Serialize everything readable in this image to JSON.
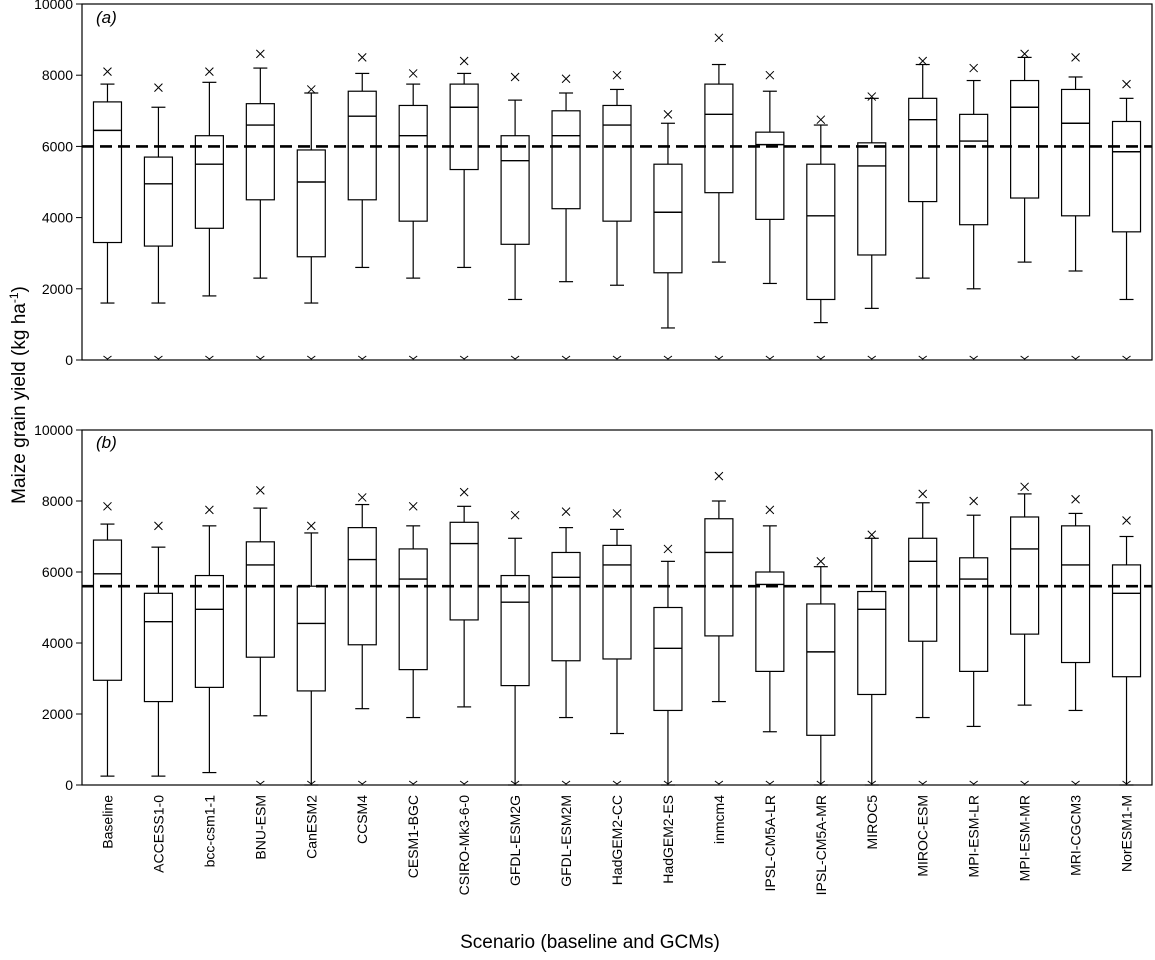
{
  "chart_data": {
    "type": "box",
    "ylabel_main": "Maize grain yield (kg ha",
    "ylabel_unit_sup": "-1",
    "ylabel_close": ")",
    "xlabel": "Scenario (baseline and GCMs)",
    "categories": [
      "Baseline",
      "ACCESS1-0",
      "bcc-csm1-1",
      "BNU-ESM",
      "CanESM2",
      "CCSM4",
      "CESM1-BGC",
      "CSIRO-Mk3-6-0",
      "GFDL-ESM2G",
      "GFDL-ESM2M",
      "HadGEM2-CC",
      "HadGEM2-ES",
      "inmcm4",
      "IPSL-CM5A-LR",
      "IPSL-CM5A-MR",
      "MIROC5",
      "MIROC-ESM",
      "MPI-ESM-LR",
      "MPI-ESM-MR",
      "MRI-CGCM3",
      "NorESM1-M"
    ],
    "ylim": [
      0,
      10000
    ],
    "yticks": [
      0,
      2000,
      4000,
      6000,
      8000,
      10000
    ],
    "panels": [
      {
        "label": "(a)",
        "reference_line": 6000,
        "boxes": [
          {
            "min": 1600,
            "q1": 3300,
            "median": 6450,
            "q3": 7250,
            "max": 7750,
            "max_marker": 8100,
            "min_marker": 0
          },
          {
            "min": 1600,
            "q1": 3200,
            "median": 4950,
            "q3": 5700,
            "max": 7100,
            "max_marker": 7650,
            "min_marker": 0
          },
          {
            "min": 1800,
            "q1": 3700,
            "median": 5500,
            "q3": 6300,
            "max": 7800,
            "max_marker": 8100,
            "min_marker": 0
          },
          {
            "min": 2300,
            "q1": 4500,
            "median": 6600,
            "q3": 7200,
            "max": 8200,
            "max_marker": 8600,
            "min_marker": 0
          },
          {
            "min": 1600,
            "q1": 2900,
            "median": 5000,
            "q3": 5900,
            "max": 7500,
            "max_marker": 7600,
            "min_marker": 0
          },
          {
            "min": 2600,
            "q1": 4500,
            "median": 6850,
            "q3": 7550,
            "max": 8050,
            "max_marker": 8500,
            "min_marker": 0
          },
          {
            "min": 2300,
            "q1": 3900,
            "median": 6300,
            "q3": 7150,
            "max": 7750,
            "max_marker": 8050,
            "min_marker": 0
          },
          {
            "min": 2600,
            "q1": 5350,
            "median": 7100,
            "q3": 7750,
            "max": 8050,
            "max_marker": 8400,
            "min_marker": 0
          },
          {
            "min": 1700,
            "q1": 3250,
            "median": 5600,
            "q3": 6300,
            "max": 7300,
            "max_marker": 7950,
            "min_marker": 0
          },
          {
            "min": 2200,
            "q1": 4250,
            "median": 6300,
            "q3": 7000,
            "max": 7500,
            "max_marker": 7900,
            "min_marker": 0
          },
          {
            "min": 2100,
            "q1": 3900,
            "median": 6600,
            "q3": 7150,
            "max": 7600,
            "max_marker": 8000,
            "min_marker": 0
          },
          {
            "min": 900,
            "q1": 2450,
            "median": 4150,
            "q3": 5500,
            "max": 6650,
            "max_marker": 6900,
            "min_marker": 0
          },
          {
            "min": 2750,
            "q1": 4700,
            "median": 6900,
            "q3": 7750,
            "max": 8300,
            "max_marker": 9050,
            "min_marker": 0
          },
          {
            "min": 2150,
            "q1": 3950,
            "median": 6050,
            "q3": 6400,
            "max": 7550,
            "max_marker": 8000,
            "min_marker": 0
          },
          {
            "min": 1050,
            "q1": 1700,
            "median": 4050,
            "q3": 5500,
            "max": 6600,
            "max_marker": 6750,
            "min_marker": 0
          },
          {
            "min": 1450,
            "q1": 2950,
            "median": 5450,
            "q3": 6100,
            "max": 7350,
            "max_marker": 7400,
            "min_marker": 0
          },
          {
            "min": 2300,
            "q1": 4450,
            "median": 6750,
            "q3": 7350,
            "max": 8300,
            "max_marker": 8400,
            "min_marker": 0
          },
          {
            "min": 2000,
            "q1": 3800,
            "median": 6150,
            "q3": 6900,
            "max": 7850,
            "max_marker": 8200,
            "min_marker": 0
          },
          {
            "min": 2750,
            "q1": 4550,
            "median": 7100,
            "q3": 7850,
            "max": 8500,
            "max_marker": 8600,
            "min_marker": 0
          },
          {
            "min": 2500,
            "q1": 4050,
            "median": 6650,
            "q3": 7600,
            "max": 7950,
            "max_marker": 8500,
            "min_marker": 0
          },
          {
            "min": 1700,
            "q1": 3600,
            "median": 5850,
            "q3": 6700,
            "max": 7350,
            "max_marker": 7750,
            "min_marker": 0
          }
        ]
      },
      {
        "label": "(b)",
        "reference_line": 5600,
        "boxes": [
          {
            "min": 250,
            "q1": 2950,
            "median": 5950,
            "q3": 6900,
            "max": 7350,
            "max_marker": 7850,
            "min_marker": null
          },
          {
            "min": 250,
            "q1": 2350,
            "median": 4600,
            "q3": 5400,
            "max": 6700,
            "max_marker": 7300,
            "min_marker": null
          },
          {
            "min": 350,
            "q1": 2750,
            "median": 4950,
            "q3": 5900,
            "max": 7300,
            "max_marker": 7750,
            "min_marker": null
          },
          {
            "min": 1950,
            "q1": 3600,
            "median": 6200,
            "q3": 6850,
            "max": 7800,
            "max_marker": 8300,
            "min_marker": 0
          },
          {
            "min": 0,
            "q1": 2650,
            "median": 4550,
            "q3": 5600,
            "max": 7100,
            "max_marker": 7300,
            "min_marker": 0
          },
          {
            "min": 2150,
            "q1": 3950,
            "median": 6350,
            "q3": 7250,
            "max": 7900,
            "max_marker": 8100,
            "min_marker": 0
          },
          {
            "min": 1900,
            "q1": 3250,
            "median": 5800,
            "q3": 6650,
            "max": 7300,
            "max_marker": 7850,
            "min_marker": 0
          },
          {
            "min": 2200,
            "q1": 4650,
            "median": 6800,
            "q3": 7400,
            "max": 7850,
            "max_marker": 8250,
            "min_marker": 0
          },
          {
            "min": 0,
            "q1": 2800,
            "median": 5150,
            "q3": 5900,
            "max": 6950,
            "max_marker": 7600,
            "min_marker": 0
          },
          {
            "min": 1900,
            "q1": 3500,
            "median": 5850,
            "q3": 6550,
            "max": 7250,
            "max_marker": 7700,
            "min_marker": 0
          },
          {
            "min": 1450,
            "q1": 3550,
            "median": 6200,
            "q3": 6750,
            "max": 7200,
            "max_marker": 7650,
            "min_marker": 0
          },
          {
            "min": 0,
            "q1": 2100,
            "median": 3850,
            "q3": 5000,
            "max": 6300,
            "max_marker": 6650,
            "min_marker": 0
          },
          {
            "min": 2350,
            "q1": 4200,
            "median": 6550,
            "q3": 7500,
            "max": 8000,
            "max_marker": 8700,
            "min_marker": 0
          },
          {
            "min": 1500,
            "q1": 3200,
            "median": 5650,
            "q3": 6000,
            "max": 7300,
            "max_marker": 7750,
            "min_marker": 0
          },
          {
            "min": 0,
            "q1": 1400,
            "median": 3750,
            "q3": 5100,
            "max": 6150,
            "max_marker": 6300,
            "min_marker": 0
          },
          {
            "min": 0,
            "q1": 2550,
            "median": 4950,
            "q3": 5450,
            "max": 6950,
            "max_marker": 7050,
            "min_marker": 0
          },
          {
            "min": 1900,
            "q1": 4050,
            "median": 6300,
            "q3": 6950,
            "max": 7950,
            "max_marker": 8200,
            "min_marker": 0
          },
          {
            "min": 1650,
            "q1": 3200,
            "median": 5800,
            "q3": 6400,
            "max": 7600,
            "max_marker": 8000,
            "min_marker": 0
          },
          {
            "min": 2250,
            "q1": 4250,
            "median": 6650,
            "q3": 7550,
            "max": 8200,
            "max_marker": 8400,
            "min_marker": 0
          },
          {
            "min": 2100,
            "q1": 3450,
            "median": 6200,
            "q3": 7300,
            "max": 7650,
            "max_marker": 8050,
            "min_marker": 0
          },
          {
            "min": 0,
            "q1": 3050,
            "median": 5400,
            "q3": 6200,
            "max": 7000,
            "max_marker": 7450,
            "min_marker": 0
          }
        ]
      }
    ]
  }
}
